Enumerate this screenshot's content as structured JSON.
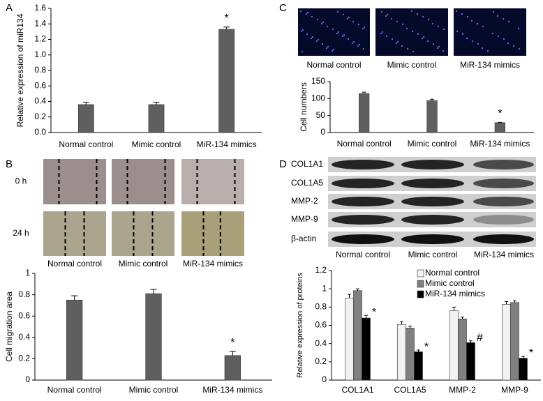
{
  "chart_data": [
    {
      "type": "bar",
      "panel": "A",
      "ylabel": "Relative expression of miR134",
      "categories": [
        "Normal control",
        "Mimic control",
        "MiR-134 mimics"
      ],
      "values": [
        0.36,
        0.36,
        1.33
      ],
      "errors": [
        0.03,
        0.03,
        0.03
      ],
      "markers": [
        null,
        null,
        "*"
      ],
      "color": "#5f5f5f",
      "ylim": [
        0,
        1.6
      ],
      "yticks": [
        {
          "value": 0,
          "label": "0.0"
        },
        {
          "value": 0.2,
          "label": "0.2"
        },
        {
          "value": 0.4,
          "label": "0.4"
        },
        {
          "value": 0.6,
          "label": "0.6"
        },
        {
          "value": 0.8,
          "label": "0.8"
        },
        {
          "value": 1.0,
          "label": "1.0"
        },
        {
          "value": 1.2,
          "label": "1.2"
        },
        {
          "value": 1.4,
          "label": "1.4"
        },
        {
          "value": 1.6,
          "label": "1.6"
        }
      ]
    },
    {
      "type": "bar",
      "panel": "B",
      "ylabel": "Cell migration area",
      "image_rows": [
        "0 h",
        "24 h"
      ],
      "image_columns": [
        "Normal control",
        "Mimic control",
        "MiR-134 mimics"
      ],
      "categories": [
        "Normal control",
        "Mimic control",
        "MiR-134 mimics"
      ],
      "values": [
        0.75,
        0.81,
        0.23
      ],
      "errors": [
        0.04,
        0.04,
        0.04
      ],
      "markers": [
        null,
        null,
        "*"
      ],
      "color": "#5f5f5f",
      "ylim": [
        0,
        1
      ],
      "yticks": [
        0,
        0.2,
        0.4,
        0.6,
        0.8,
        1
      ]
    },
    {
      "type": "bar",
      "panel": "C",
      "ylabel": "Cell numbers",
      "image_columns": [
        "Normal control",
        "Mimic control",
        "MiR-134 mimics"
      ],
      "categories": [
        "Normal control",
        "Mimic control",
        "MiR-134 mimics"
      ],
      "values": [
        115,
        94,
        29
      ],
      "errors": [
        4,
        4,
        1
      ],
      "markers": [
        null,
        null,
        "*"
      ],
      "color": "#5f5f5f",
      "ylim": [
        0,
        150
      ],
      "yticks": [
        0,
        50,
        100,
        150
      ]
    },
    {
      "type": "grouped_bar",
      "panel": "D",
      "ylabel": "Relative expression of proteins",
      "blot_rows": [
        "COL1A1",
        "COL1A5",
        "MMP-2",
        "MMP-9",
        "β-actin"
      ],
      "blot_columns": [
        "Normal control",
        "Mimic control",
        "MiR-134 mimics"
      ],
      "categories": [
        "COL1A1",
        "COL1A5",
        "MMP-2",
        "MMP-9"
      ],
      "series": [
        {
          "name": "Normal control",
          "color": "#f2f2f2",
          "values": [
            0.9,
            0.61,
            0.76,
            0.83
          ],
          "errors": [
            0.04,
            0.03,
            0.04,
            0.03
          ]
        },
        {
          "name": "Mimic control",
          "color": "#808080",
          "values": [
            0.98,
            0.57,
            0.67,
            0.85
          ],
          "errors": [
            0.02,
            0.02,
            0.02,
            0.02
          ]
        },
        {
          "name": "MiR-134 mimics",
          "color": "#000000",
          "values": [
            0.68,
            0.31,
            0.41,
            0.24
          ],
          "errors": [
            0.03,
            0.02,
            0.02,
            0.02
          ],
          "markers": [
            "*",
            "*",
            "#",
            "*"
          ]
        }
      ],
      "ylim": [
        0,
        1.2
      ],
      "yticks": [
        0,
        0.2,
        0.4,
        0.6,
        0.8,
        1,
        1.2
      ]
    }
  ]
}
